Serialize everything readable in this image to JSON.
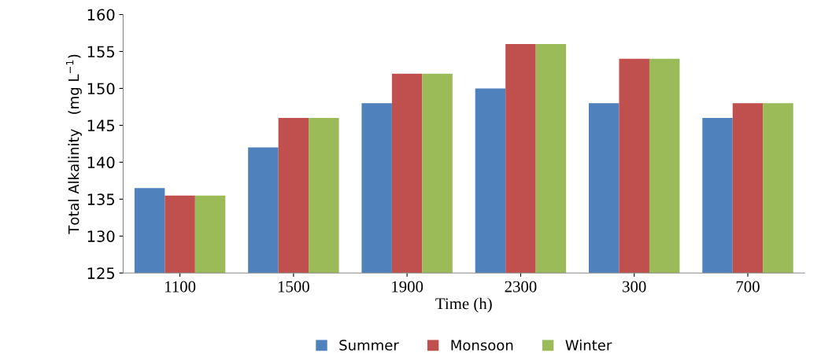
{
  "chart_data": {
    "type": "bar",
    "xlabel": "Time (h)",
    "ylabel": "Total Alkalinity   (mg L$^{−1}$)",
    "categories": [
      "1100",
      "1500",
      "1900",
      "2300",
      "300",
      "700"
    ],
    "series": [
      {
        "name": "Summer",
        "color": "#4f81bd",
        "values": [
          136.5,
          142,
          148,
          150,
          148,
          146
        ]
      },
      {
        "name": "Monsoon",
        "color": "#c0504d",
        "values": [
          135.5,
          146,
          152,
          156,
          154,
          148
        ]
      },
      {
        "name": "Winter",
        "color": "#9bbb59",
        "values": [
          135.5,
          146,
          152,
          156,
          154,
          148
        ]
      }
    ],
    "ylim": [
      125,
      160
    ],
    "yticks": [
      125,
      130,
      135,
      140,
      145,
      150,
      155,
      160
    ],
    "grid": false,
    "legend": "bottom"
  }
}
